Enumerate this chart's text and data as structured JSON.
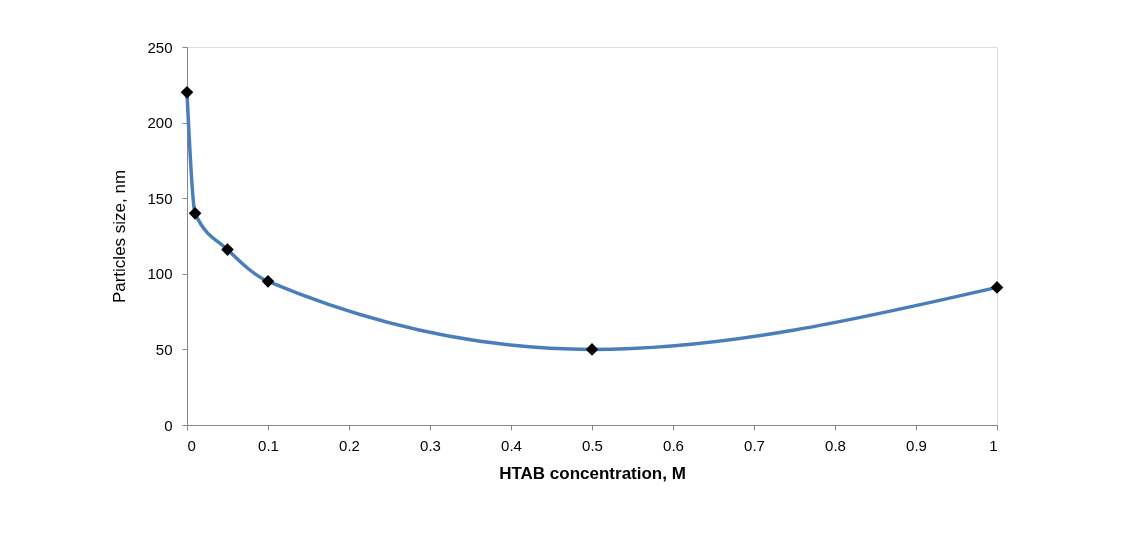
{
  "chart_data": {
    "type": "line",
    "xlabel": "HTAB concentration, M",
    "ylabel": "Particles size, nm",
    "x": [
      0,
      0.01,
      0.05,
      0.1,
      0.5,
      1
    ],
    "series": [
      {
        "color": "#4a7ebb",
        "values": [
          220,
          140,
          116,
          95,
          50,
          91
        ]
      }
    ],
    "xlim": [
      0,
      1
    ],
    "xticks": [
      0,
      0.1,
      0.2,
      0.3,
      0.4,
      0.5,
      0.6,
      0.7,
      0.8,
      0.9,
      1
    ],
    "ylim": [
      0,
      250
    ],
    "yticks": [
      0,
      50,
      100,
      150,
      200,
      250
    ],
    "marker": "diamond",
    "line_style": "solid",
    "grid": false,
    "legend": false
  }
}
